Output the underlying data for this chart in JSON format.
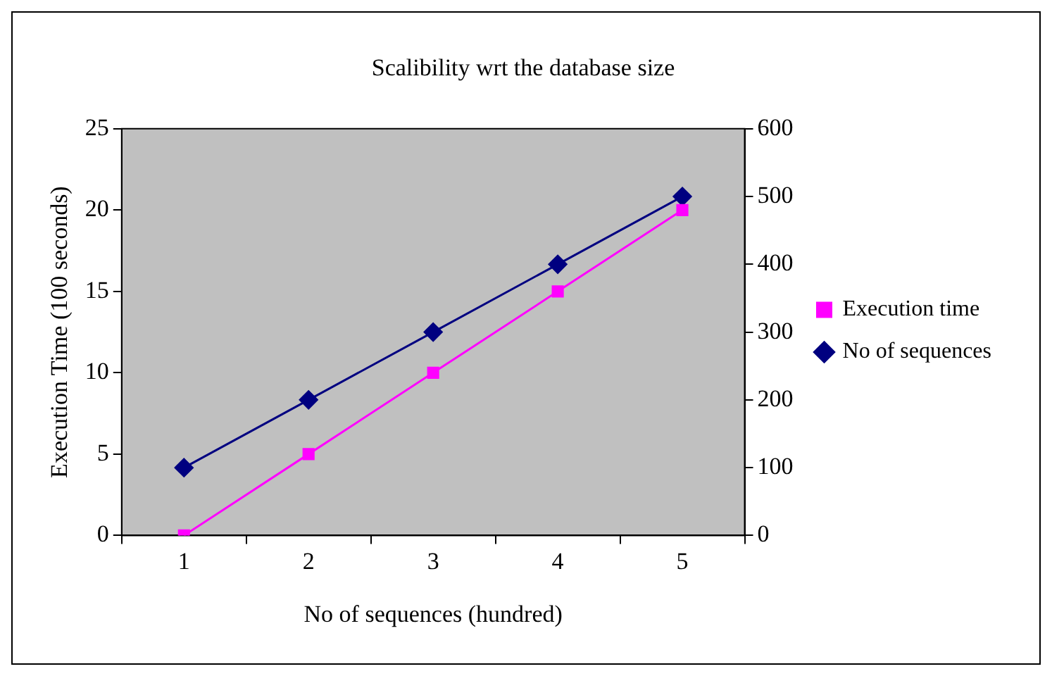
{
  "chart_data": {
    "type": "line",
    "title": "Scalibility wrt the database size",
    "xlabel": "No of sequences (hundred)",
    "ylabel": "Execution Time (100 seconds)",
    "categories": [
      "1",
      "2",
      "3",
      "4",
      "5"
    ],
    "series": [
      {
        "name": "Execution time",
        "color": "#ff00ff",
        "marker": "square",
        "values": [
          0,
          5,
          10,
          15,
          20
        ]
      },
      {
        "name": "No of sequences",
        "color": "#000080",
        "marker": "diamond",
        "axis": "y2",
        "values": [
          100,
          200,
          300,
          400,
          500
        ]
      }
    ],
    "ylim": [
      0,
      25
    ],
    "yticks": [
      0,
      5,
      10,
      15,
      20,
      25
    ],
    "y2lim": [
      0,
      600
    ],
    "y2ticks": [
      0,
      100,
      200,
      300,
      400,
      500,
      600
    ],
    "grid": false,
    "legend": "right",
    "line_style": "solid"
  }
}
